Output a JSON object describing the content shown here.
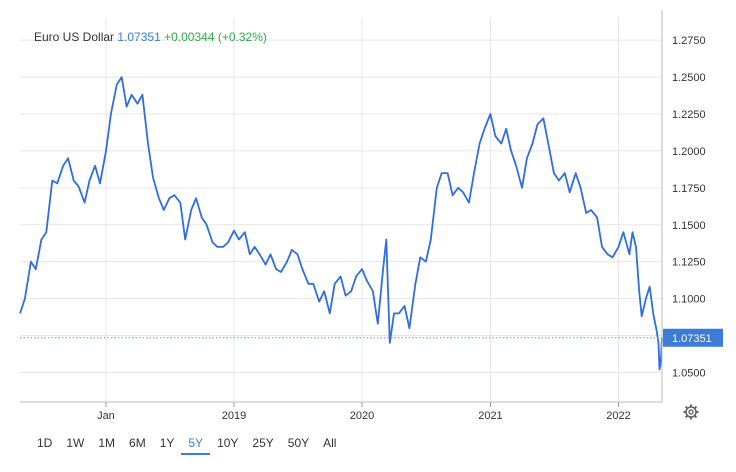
{
  "legend": {
    "name": "Euro US Dollar",
    "price": "1.07351",
    "change": "+0.00344 (+0.32%)"
  },
  "current_price_label": "1.07351",
  "range_buttons": [
    "1D",
    "1W",
    "1M",
    "6M",
    "1Y",
    "5Y",
    "10Y",
    "25Y",
    "50Y",
    "All"
  ],
  "active_range": "5Y",
  "colors": {
    "line": "#2f6de1",
    "accent": "#3d7bd9",
    "positive": "#2eaa49",
    "grid": "#e6e6e6"
  },
  "chart_data": {
    "type": "line",
    "title": "",
    "xlabel": "",
    "ylabel": "",
    "x_ticks": [
      "Jan",
      "2019",
      "2020",
      "2021",
      "2022"
    ],
    "y_ticks": [
      "1.2750",
      "1.2500",
      "1.2250",
      "1.2000",
      "1.1750",
      "1.1500",
      "1.1250",
      "1.1000",
      "1.0750",
      "1.0500"
    ],
    "ylim": [
      1.03,
      1.29
    ],
    "xlim": [
      "2017-05-01",
      "2022-05-05"
    ],
    "grid": true,
    "legend_position": "top-left",
    "series": [
      {
        "name": "Euro US Dollar",
        "points": [
          [
            "2017-05-01",
            1.09
          ],
          [
            "2017-05-15",
            1.1
          ],
          [
            "2017-06-01",
            1.125
          ],
          [
            "2017-06-15",
            1.12
          ],
          [
            "2017-07-01",
            1.14
          ],
          [
            "2017-07-15",
            1.145
          ],
          [
            "2017-08-01",
            1.18
          ],
          [
            "2017-08-15",
            1.178
          ],
          [
            "2017-09-01",
            1.19
          ],
          [
            "2017-09-15",
            1.195
          ],
          [
            "2017-10-01",
            1.18
          ],
          [
            "2017-10-15",
            1.176
          ],
          [
            "2017-11-01",
            1.165
          ],
          [
            "2017-11-15",
            1.18
          ],
          [
            "2017-12-01",
            1.19
          ],
          [
            "2017-12-15",
            1.178
          ],
          [
            "2018-01-01",
            1.2
          ],
          [
            "2018-01-15",
            1.225
          ],
          [
            "2018-02-01",
            1.245
          ],
          [
            "2018-02-15",
            1.25
          ],
          [
            "2018-03-01",
            1.23
          ],
          [
            "2018-03-15",
            1.238
          ],
          [
            "2018-04-01",
            1.232
          ],
          [
            "2018-04-15",
            1.238
          ],
          [
            "2018-05-01",
            1.205
          ],
          [
            "2018-05-15",
            1.182
          ],
          [
            "2018-06-01",
            1.168
          ],
          [
            "2018-06-15",
            1.16
          ],
          [
            "2018-07-01",
            1.168
          ],
          [
            "2018-07-15",
            1.17
          ],
          [
            "2018-08-01",
            1.165
          ],
          [
            "2018-08-15",
            1.14
          ],
          [
            "2018-09-01",
            1.16
          ],
          [
            "2018-09-15",
            1.168
          ],
          [
            "2018-10-01",
            1.155
          ],
          [
            "2018-10-15",
            1.15
          ],
          [
            "2018-11-01",
            1.138
          ],
          [
            "2018-11-15",
            1.135
          ],
          [
            "2018-12-01",
            1.135
          ],
          [
            "2018-12-15",
            1.138
          ],
          [
            "2019-01-01",
            1.146
          ],
          [
            "2019-01-15",
            1.14
          ],
          [
            "2019-02-01",
            1.145
          ],
          [
            "2019-02-15",
            1.13
          ],
          [
            "2019-03-01",
            1.135
          ],
          [
            "2019-03-15",
            1.13
          ],
          [
            "2019-04-01",
            1.123
          ],
          [
            "2019-04-15",
            1.13
          ],
          [
            "2019-05-01",
            1.12
          ],
          [
            "2019-05-15",
            1.118
          ],
          [
            "2019-06-01",
            1.125
          ],
          [
            "2019-06-15",
            1.133
          ],
          [
            "2019-07-01",
            1.13
          ],
          [
            "2019-07-15",
            1.12
          ],
          [
            "2019-08-01",
            1.11
          ],
          [
            "2019-08-15",
            1.11
          ],
          [
            "2019-09-01",
            1.098
          ],
          [
            "2019-09-15",
            1.105
          ],
          [
            "2019-10-01",
            1.09
          ],
          [
            "2019-10-15",
            1.11
          ],
          [
            "2019-11-01",
            1.115
          ],
          [
            "2019-11-15",
            1.102
          ],
          [
            "2019-12-01",
            1.105
          ],
          [
            "2019-12-15",
            1.115
          ],
          [
            "2020-01-01",
            1.12
          ],
          [
            "2020-01-15",
            1.112
          ],
          [
            "2020-02-01",
            1.105
          ],
          [
            "2020-02-15",
            1.083
          ],
          [
            "2020-03-01",
            1.12
          ],
          [
            "2020-03-10",
            1.14
          ],
          [
            "2020-03-20",
            1.07
          ],
          [
            "2020-04-01",
            1.09
          ],
          [
            "2020-04-15",
            1.09
          ],
          [
            "2020-05-01",
            1.095
          ],
          [
            "2020-05-15",
            1.08
          ],
          [
            "2020-06-01",
            1.11
          ],
          [
            "2020-06-15",
            1.128
          ],
          [
            "2020-07-01",
            1.125
          ],
          [
            "2020-07-15",
            1.14
          ],
          [
            "2020-08-01",
            1.175
          ],
          [
            "2020-08-15",
            1.185
          ],
          [
            "2020-09-01",
            1.185
          ],
          [
            "2020-09-15",
            1.17
          ],
          [
            "2020-10-01",
            1.175
          ],
          [
            "2020-10-15",
            1.172
          ],
          [
            "2020-11-01",
            1.165
          ],
          [
            "2020-11-15",
            1.185
          ],
          [
            "2020-12-01",
            1.205
          ],
          [
            "2020-12-15",
            1.215
          ],
          [
            "2021-01-01",
            1.225
          ],
          [
            "2021-01-15",
            1.21
          ],
          [
            "2021-02-01",
            1.205
          ],
          [
            "2021-02-15",
            1.215
          ],
          [
            "2021-03-01",
            1.2
          ],
          [
            "2021-03-15",
            1.19
          ],
          [
            "2021-04-01",
            1.175
          ],
          [
            "2021-04-15",
            1.195
          ],
          [
            "2021-05-01",
            1.205
          ],
          [
            "2021-05-15",
            1.218
          ],
          [
            "2021-06-01",
            1.222
          ],
          [
            "2021-06-15",
            1.205
          ],
          [
            "2021-07-01",
            1.185
          ],
          [
            "2021-07-15",
            1.18
          ],
          [
            "2021-08-01",
            1.185
          ],
          [
            "2021-08-15",
            1.172
          ],
          [
            "2021-09-01",
            1.185
          ],
          [
            "2021-09-15",
            1.175
          ],
          [
            "2021-10-01",
            1.158
          ],
          [
            "2021-10-15",
            1.16
          ],
          [
            "2021-11-01",
            1.155
          ],
          [
            "2021-11-15",
            1.135
          ],
          [
            "2021-12-01",
            1.13
          ],
          [
            "2021-12-15",
            1.128
          ],
          [
            "2022-01-01",
            1.135
          ],
          [
            "2022-01-15",
            1.145
          ],
          [
            "2022-02-01",
            1.13
          ],
          [
            "2022-02-10",
            1.145
          ],
          [
            "2022-02-20",
            1.135
          ],
          [
            "2022-03-01",
            1.105
          ],
          [
            "2022-03-08",
            1.088
          ],
          [
            "2022-03-20",
            1.1
          ],
          [
            "2022-03-31",
            1.108
          ],
          [
            "2022-04-10",
            1.09
          ],
          [
            "2022-04-20",
            1.078
          ],
          [
            "2022-04-25",
            1.07
          ],
          [
            "2022-04-28",
            1.052
          ],
          [
            "2022-05-02",
            1.058
          ],
          [
            "2022-05-05",
            1.0735
          ]
        ]
      }
    ]
  }
}
